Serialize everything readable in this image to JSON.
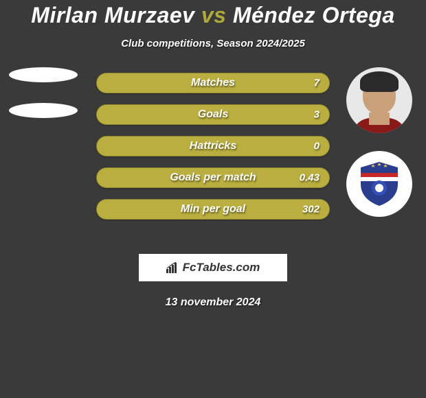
{
  "title": {
    "player1": "Mirlan Murzaev",
    "vs": "vs",
    "player2": "Méndez Ortega",
    "player1_color": "#ffffff",
    "player2_color": "#ffffff",
    "vs_color": "#b0a93a",
    "fontsize": 32
  },
  "subtitle": "Club competitions, Season 2024/2025",
  "background_color": "#3a3a3a",
  "bar_style": {
    "fill_color": "#b9ae3f",
    "track_color": "#aaa03a",
    "text_color": "#ffffff",
    "height": 30,
    "radius": 15,
    "label_fontsize": 16,
    "value_fontsize": 15
  },
  "stats": [
    {
      "label": "Matches",
      "value": "7",
      "fill_pct": 100
    },
    {
      "label": "Goals",
      "value": "3",
      "fill_pct": 100
    },
    {
      "label": "Hattricks",
      "value": "0",
      "fill_pct": 100
    },
    {
      "label": "Goals per match",
      "value": "0.43",
      "fill_pct": 100
    },
    {
      "label": "Min per goal",
      "value": "302",
      "fill_pct": 100
    }
  ],
  "left_shapes": {
    "count": 2,
    "color": "#ffffff"
  },
  "right_badge": {
    "shield_primary": "#2a3d8f",
    "shield_secondary": "#c62828",
    "shield_band": "#ffffff",
    "star_color": "#f2c94c"
  },
  "brand": {
    "text": "FcTables.com",
    "bar_color": "#333333"
  },
  "date": "13 november 2024"
}
